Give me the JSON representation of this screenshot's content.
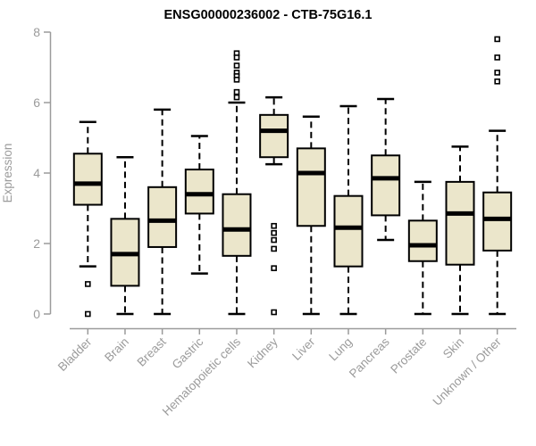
{
  "chart_data": {
    "type": "box",
    "title": "ENSG00000236002 - CTB-75G16.1",
    "ylabel": "Expression",
    "xlabel": "",
    "ylim": [
      0,
      8
    ],
    "yticks": [
      0,
      2,
      4,
      6,
      8
    ],
    "grid": false,
    "legend": false,
    "categories": [
      "Bladder",
      "Brain",
      "Breast",
      "Gastric",
      "Hematopoietic cells",
      "Kidney",
      "Liver",
      "Lung",
      "Pancreas",
      "Prostate",
      "Skin",
      "Unknown / Other"
    ],
    "series": [
      {
        "category": "Bladder",
        "lower_whisker": 1.35,
        "q1": 3.1,
        "median": 3.7,
        "q3": 4.55,
        "upper_whisker": 5.45,
        "outliers": [
          0.85,
          0.0
        ]
      },
      {
        "category": "Brain",
        "lower_whisker": 0.0,
        "q1": 0.8,
        "median": 1.7,
        "q3": 2.7,
        "upper_whisker": 4.45,
        "outliers": []
      },
      {
        "category": "Breast",
        "lower_whisker": 0.0,
        "q1": 1.9,
        "median": 2.65,
        "q3": 3.6,
        "upper_whisker": 5.8,
        "outliers": []
      },
      {
        "category": "Gastric",
        "lower_whisker": 1.15,
        "q1": 2.85,
        "median": 3.4,
        "q3": 4.1,
        "upper_whisker": 5.05,
        "outliers": []
      },
      {
        "category": "Hematopoietic cells",
        "lower_whisker": 0.0,
        "q1": 1.65,
        "median": 2.4,
        "q3": 3.4,
        "upper_whisker": 6.0,
        "outliers": [
          7.4,
          7.28,
          7.05,
          6.85,
          6.75,
          6.65,
          6.3,
          6.15
        ]
      },
      {
        "category": "Kidney",
        "lower_whisker": 4.25,
        "q1": 4.45,
        "median": 5.2,
        "q3": 5.65,
        "upper_whisker": 6.15,
        "outliers": [
          2.5,
          2.3,
          2.1,
          1.85,
          1.3,
          0.05
        ]
      },
      {
        "category": "Liver",
        "lower_whisker": 0.0,
        "q1": 2.5,
        "median": 4.0,
        "q3": 4.7,
        "upper_whisker": 5.6,
        "outliers": []
      },
      {
        "category": "Lung",
        "lower_whisker": 0.0,
        "q1": 1.35,
        "median": 2.45,
        "q3": 3.35,
        "upper_whisker": 5.9,
        "outliers": []
      },
      {
        "category": "Pancreas",
        "lower_whisker": 2.1,
        "q1": 2.8,
        "median": 3.85,
        "q3": 4.5,
        "upper_whisker": 6.1,
        "outliers": []
      },
      {
        "category": "Prostate",
        "lower_whisker": 0.0,
        "q1": 1.5,
        "median": 1.95,
        "q3": 2.65,
        "upper_whisker": 3.75,
        "outliers": []
      },
      {
        "category": "Skin",
        "lower_whisker": 0.0,
        "q1": 1.4,
        "median": 2.85,
        "q3": 3.75,
        "upper_whisker": 4.75,
        "outliers": []
      },
      {
        "category": "Unknown / Other",
        "lower_whisker": 0.0,
        "q1": 1.8,
        "median": 2.7,
        "q3": 3.45,
        "upper_whisker": 5.2,
        "outliers": [
          7.8,
          7.28,
          6.85,
          6.6
        ]
      }
    ],
    "colors": {
      "box_fill": "#ebe6cb",
      "box_stroke": "#000000",
      "whisker": "#000000",
      "median": "#000000",
      "outlier_stroke": "#000000",
      "outlier_fill": "#ffffff",
      "axis": "#9b9b9b",
      "tick_label": "#9b9b9b",
      "title": "#000000",
      "background": "#ffffff"
    }
  }
}
